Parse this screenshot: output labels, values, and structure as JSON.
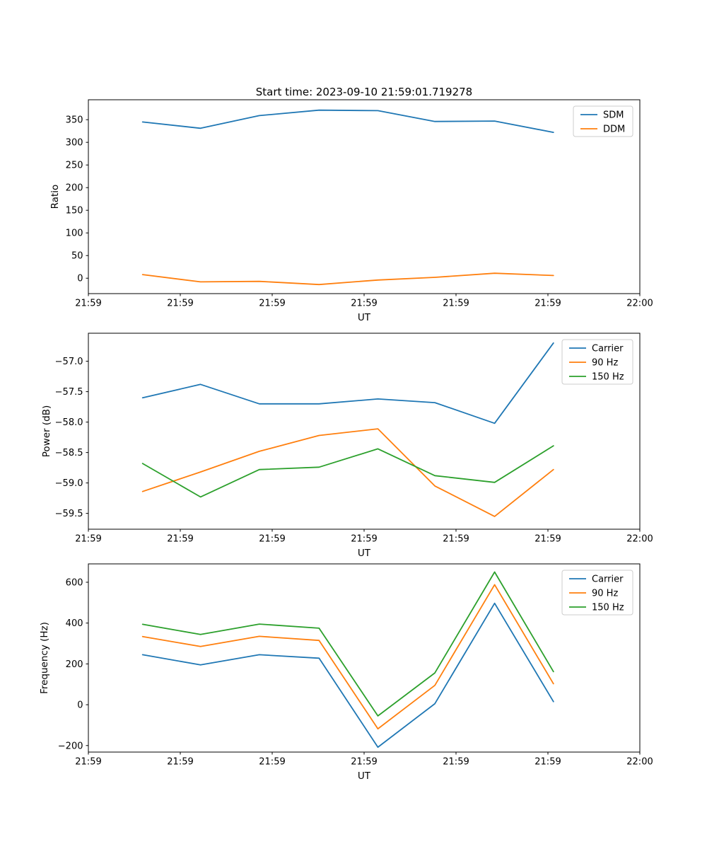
{
  "figure": {
    "background": "#ffffff",
    "title": "Start time: 2023-09-10 21:59:01.719278"
  },
  "colors": {
    "blue": "#1f77b4",
    "orange": "#ff7f0e",
    "green": "#2ca02c",
    "spine": "#000000"
  },
  "chart_data": [
    {
      "type": "line",
      "name": "ratio",
      "title": "Start time: 2023-09-10 21:59:01.719278",
      "xlabel": "UT",
      "ylabel": "Ratio",
      "x_seconds_after_2159": [
        5.9,
        12.2,
        18.6,
        25.1,
        31.5,
        37.7,
        44.2,
        50.6
      ],
      "xlim": [
        0,
        60
      ],
      "ylim": [
        -34,
        394
      ],
      "xtick_labels": [
        "21:59",
        "21:59",
        "21:59",
        "21:59",
        "21:59",
        "21:59",
        "22:00"
      ],
      "yticks": [
        0,
        50,
        100,
        150,
        200,
        250,
        300,
        350
      ],
      "ytick_labels": [
        "0",
        "50",
        "100",
        "150",
        "200",
        "250",
        "300",
        "350"
      ],
      "grid": false,
      "legend_position": "upper right",
      "series": [
        {
          "name": "SDM",
          "color": "#1f77b4",
          "values": [
            345,
            331,
            359,
            371,
            370,
            346,
            347,
            322
          ]
        },
        {
          "name": "DDM",
          "color": "#ff7f0e",
          "values": [
            8,
            -8,
            -7,
            -14,
            -4,
            2,
            11,
            6
          ]
        }
      ]
    },
    {
      "type": "line",
      "name": "power",
      "title": "",
      "xlabel": "UT",
      "ylabel": "Power (dB)",
      "x_seconds_after_2159": [
        5.9,
        12.2,
        18.6,
        25.1,
        31.5,
        37.7,
        44.2,
        50.6
      ],
      "xlim": [
        0,
        60
      ],
      "ylim": [
        -59.76,
        -56.54
      ],
      "xtick_labels": [
        "21:59",
        "21:59",
        "21:59",
        "21:59",
        "21:59",
        "21:59",
        "22:00"
      ],
      "yticks": [
        -59.5,
        -59.0,
        -58.5,
        -58.0,
        -57.5,
        -57.0
      ],
      "ytick_labels": [
        "−59.5",
        "−59.0",
        "−58.5",
        "−58.0",
        "−57.5",
        "−57.0"
      ],
      "grid": false,
      "legend_position": "upper right",
      "series": [
        {
          "name": "Carrier",
          "color": "#1f77b4",
          "values": [
            -57.6,
            -57.38,
            -57.7,
            -57.7,
            -57.62,
            -57.68,
            -58.02,
            -56.7
          ]
        },
        {
          "name": "90 Hz",
          "color": "#ff7f0e",
          "values": [
            -59.14,
            -58.82,
            -58.48,
            -58.22,
            -58.11,
            -59.05,
            -59.55,
            -58.78
          ]
        },
        {
          "name": "150 Hz",
          "color": "#2ca02c",
          "values": [
            -58.68,
            -59.23,
            -58.78,
            -58.74,
            -58.44,
            -58.88,
            -58.99,
            -58.39
          ]
        }
      ]
    },
    {
      "type": "line",
      "name": "frequency",
      "title": "",
      "xlabel": "UT",
      "ylabel": "Frequency (Hz)",
      "x_seconds_after_2159": [
        5.9,
        12.2,
        18.6,
        25.1,
        31.5,
        37.7,
        44.2,
        50.6
      ],
      "xlim": [
        0,
        60
      ],
      "ylim": [
        -232,
        690
      ],
      "xtick_labels": [
        "21:59",
        "21:59",
        "21:59",
        "21:59",
        "21:59",
        "21:59",
        "22:00"
      ],
      "yticks": [
        -200,
        0,
        200,
        400,
        600
      ],
      "ytick_labels": [
        "−200",
        "0",
        "200",
        "400",
        "600"
      ],
      "grid": false,
      "legend_position": "upper right",
      "series": [
        {
          "name": "Carrier",
          "color": "#1f77b4",
          "values": [
            245,
            195,
            245,
            228,
            -208,
            5,
            497,
            15
          ]
        },
        {
          "name": "90 Hz",
          "color": "#ff7f0e",
          "values": [
            334,
            285,
            335,
            315,
            -118,
            95,
            588,
            103
          ]
        },
        {
          "name": "150 Hz",
          "color": "#2ca02c",
          "values": [
            394,
            344,
            395,
            375,
            -55,
            156,
            650,
            162
          ]
        }
      ]
    }
  ]
}
